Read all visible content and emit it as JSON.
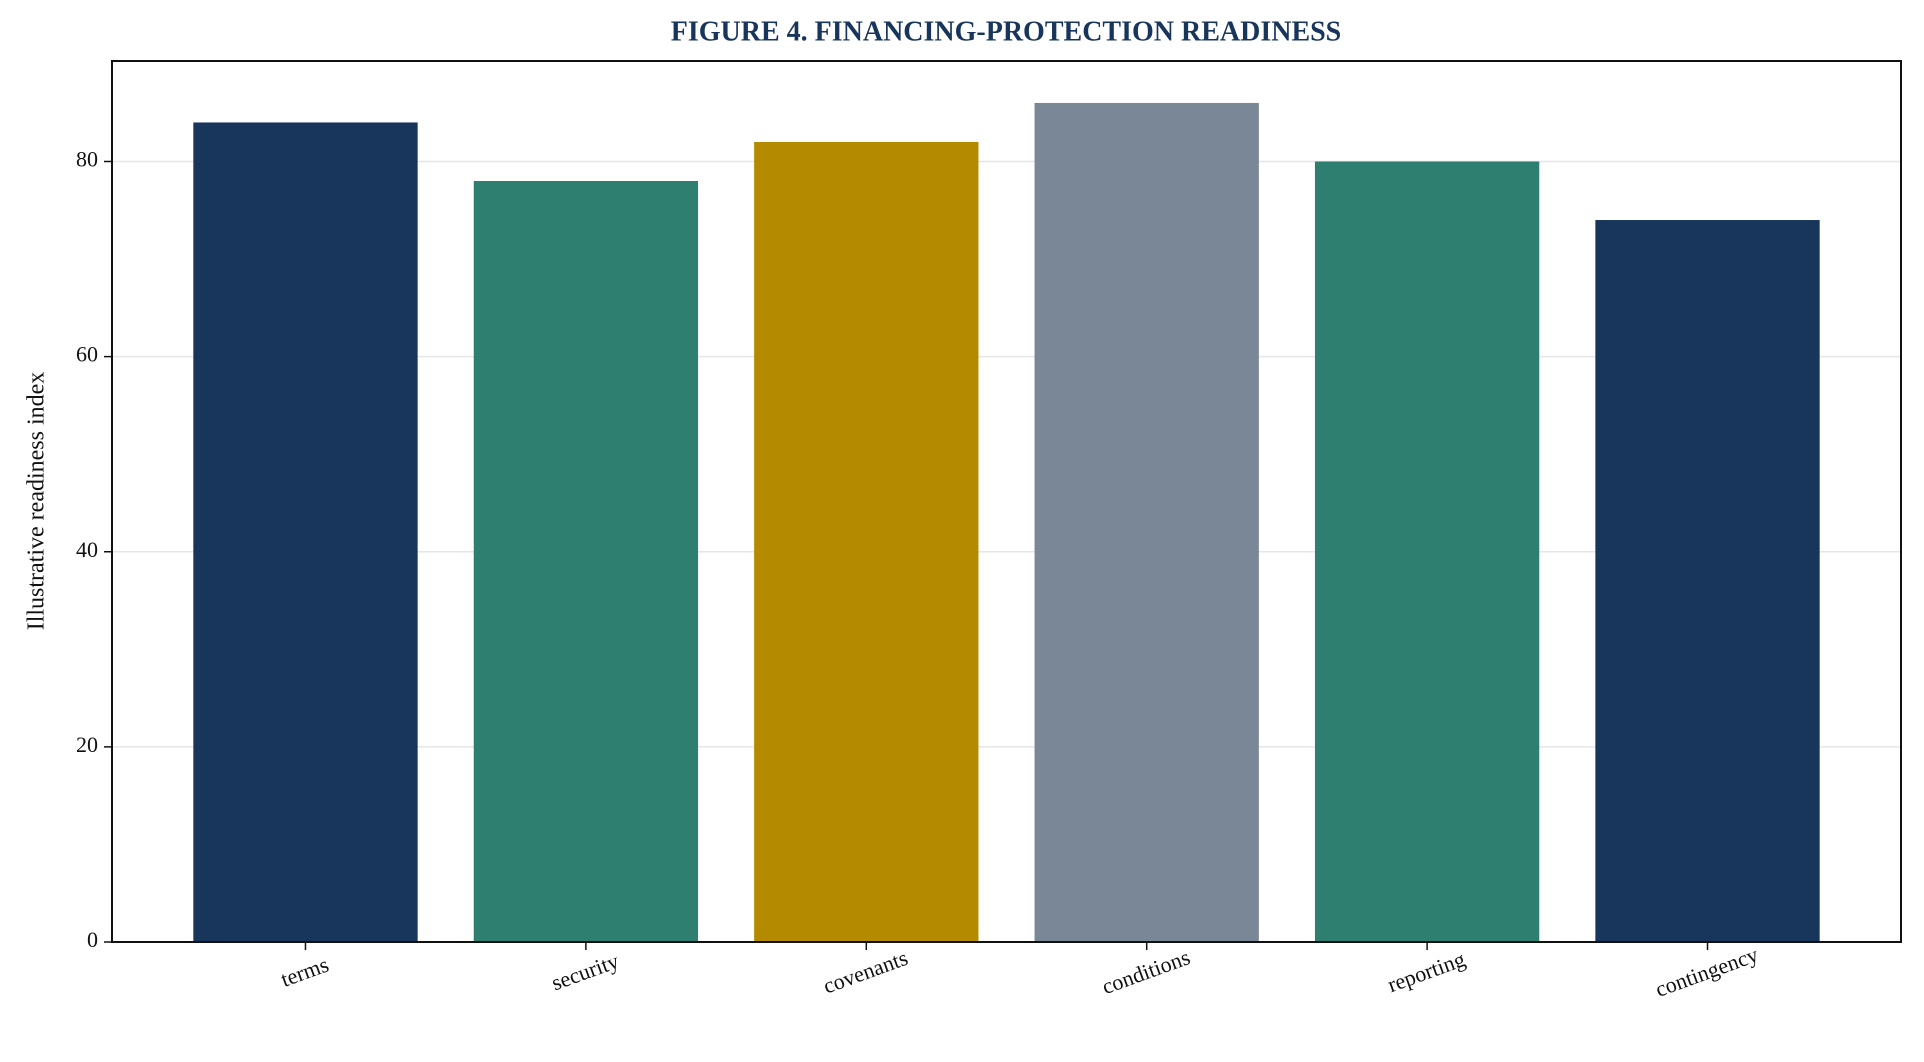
{
  "chart_data": {
    "type": "bar",
    "title": "FIGURE 4. FINANCING-PROTECTION READINESS",
    "y_label": "Illustrative readiness index",
    "categories": [
      "terms",
      "security",
      "covenants",
      "conditions",
      "reporting",
      "contingency"
    ],
    "values": [
      84,
      78,
      82,
      86,
      80,
      74
    ],
    "colors": [
      "#18365c",
      "#2e7f6f",
      "#b38a00",
      "#7a8796",
      "#2e7f6f",
      "#18365c"
    ],
    "ylim": [
      0,
      90.3
    ],
    "yticks": [
      0,
      20,
      40,
      60,
      80
    ],
    "grid": true
  }
}
